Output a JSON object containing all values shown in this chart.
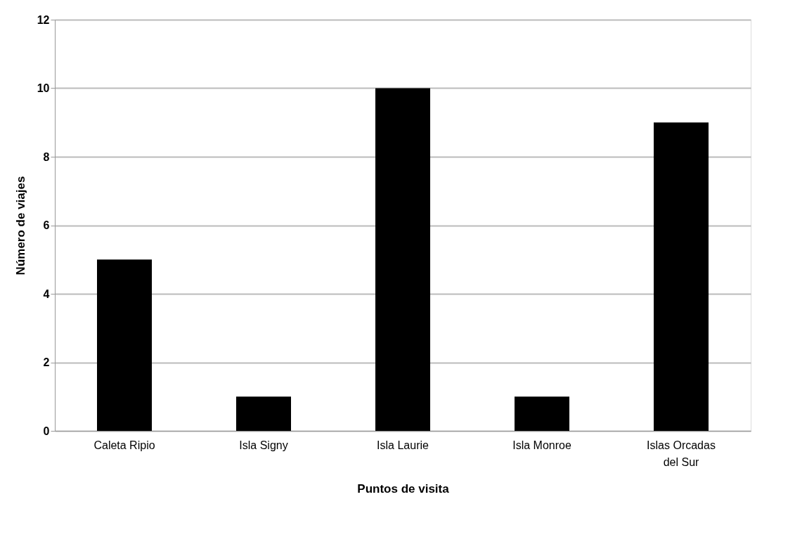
{
  "chart_data": {
    "type": "bar",
    "xlabel": "Puntos de visita",
    "ylabel": "Número de viajes",
    "categories": [
      "Caleta Ripio",
      "Isla Signy",
      "Isla Laurie",
      "Isla Monroe",
      "Islas Orcadas del Sur"
    ],
    "values": [
      5,
      1,
      10,
      1,
      9
    ],
    "color": "#000000",
    "ylim": [
      0,
      12
    ],
    "yticks": [
      0,
      2,
      4,
      6,
      8,
      10,
      12
    ],
    "grid": "y"
  }
}
